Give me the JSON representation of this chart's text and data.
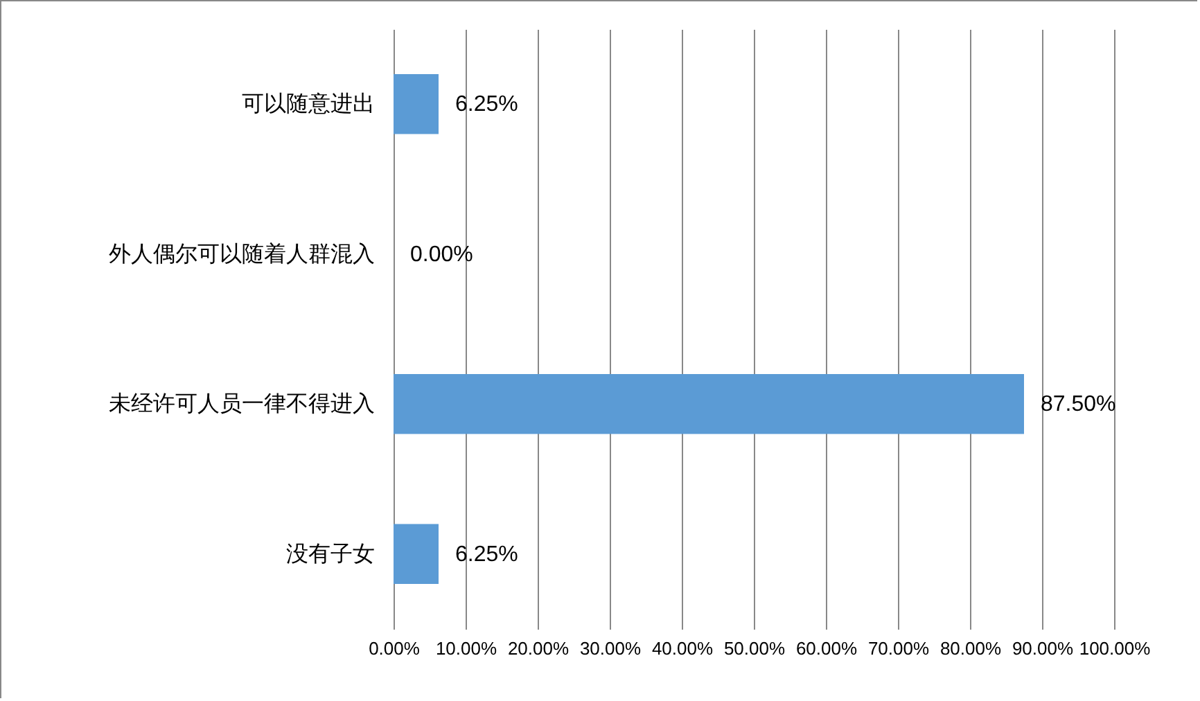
{
  "chart_data": {
    "type": "bar",
    "orientation": "horizontal",
    "categories": [
      "可以随意进出",
      "外人偶尔可以随着人群混入",
      "未经许可人员一律不得进入",
      "没有子女"
    ],
    "values": [
      6.25,
      0,
      87.5,
      6.25
    ],
    "value_labels": [
      "6.25%",
      "0.00%",
      "87.50%",
      "6.25%"
    ],
    "color": "#5b9bd5",
    "xlim": [
      0,
      100
    ],
    "xticks": [
      {
        "value": 0,
        "label": "0.00%"
      },
      {
        "value": 10,
        "label": "10.00%"
      },
      {
        "value": 20,
        "label": "20.00%"
      },
      {
        "value": 30,
        "label": "30.00%"
      },
      {
        "value": 40,
        "label": "40.00%"
      },
      {
        "value": 50,
        "label": "50.00%"
      },
      {
        "value": 60,
        "label": "60.00%"
      },
      {
        "value": 70,
        "label": "70.00%"
      },
      {
        "value": 80,
        "label": "80.00%"
      },
      {
        "value": 90,
        "label": "90.00%"
      },
      {
        "value": 100,
        "label": "100.00%"
      }
    ],
    "grid": "x"
  }
}
